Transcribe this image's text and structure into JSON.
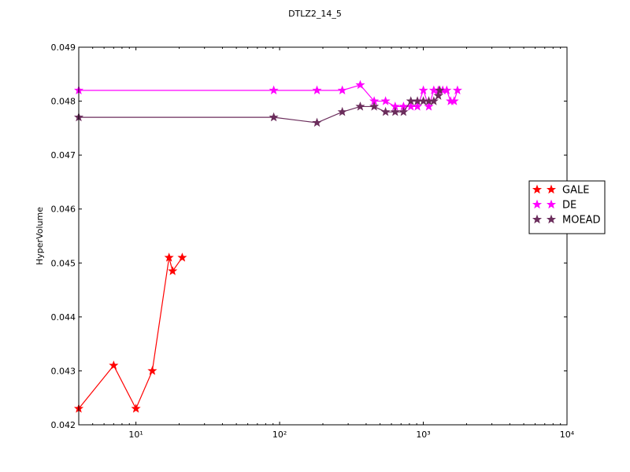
{
  "chart_data": {
    "type": "line",
    "title": "DTLZ2_14_5",
    "xlabel": "",
    "ylabel": "HyperVolume",
    "xscale": "log",
    "xlim": [
      4,
      10000
    ],
    "ylim": [
      0.042,
      0.049
    ],
    "x_tick_values": [
      10,
      100,
      1000,
      10000
    ],
    "x_tick_labels": [
      "10¹",
      "10²",
      "10³",
      "10⁴"
    ],
    "y_tick_values": [
      0.042,
      0.043,
      0.044,
      0.045,
      0.046,
      0.047,
      0.048,
      0.049
    ],
    "y_tick_labels": [
      "0.042",
      "0.043",
      "0.044",
      "0.045",
      "0.046",
      "0.047",
      "0.048",
      "0.049"
    ],
    "grid": false,
    "legend_position": "right",
    "series": [
      {
        "name": "GALE",
        "color": "#ff0000",
        "marker": "star",
        "x": [
          4,
          7,
          10,
          13,
          17,
          18,
          21
        ],
        "y": [
          0.0423,
          0.0431,
          0.0423,
          0.043,
          0.0451,
          0.04485,
          0.0451
        ]
      },
      {
        "name": "DE",
        "color": "#ff00ff",
        "marker": "star",
        "x": [
          4,
          91,
          182,
          273,
          364,
          455,
          546,
          637,
          728,
          819,
          910,
          1001,
          1092,
          1183,
          1274,
          1365,
          1456,
          1547,
          1638,
          1729
        ],
        "y": [
          0.0482,
          0.0482,
          0.0482,
          0.0482,
          0.0483,
          0.048,
          0.048,
          0.0479,
          0.0479,
          0.0479,
          0.0479,
          0.0482,
          0.0479,
          0.0482,
          0.0482,
          0.0482,
          0.0482,
          0.048,
          0.048,
          0.0482
        ]
      },
      {
        "name": "MOEAD",
        "color": "#6b2d5c",
        "marker": "star",
        "x": [
          4,
          91,
          182,
          273,
          364,
          455,
          546,
          637,
          728,
          819,
          910,
          1001,
          1092,
          1183,
          1274,
          1300
        ],
        "y": [
          0.0477,
          0.0477,
          0.0476,
          0.0478,
          0.0479,
          0.0479,
          0.0478,
          0.0478,
          0.0478,
          0.048,
          0.048,
          0.048,
          0.048,
          0.048,
          0.0481,
          0.0482
        ]
      }
    ]
  }
}
